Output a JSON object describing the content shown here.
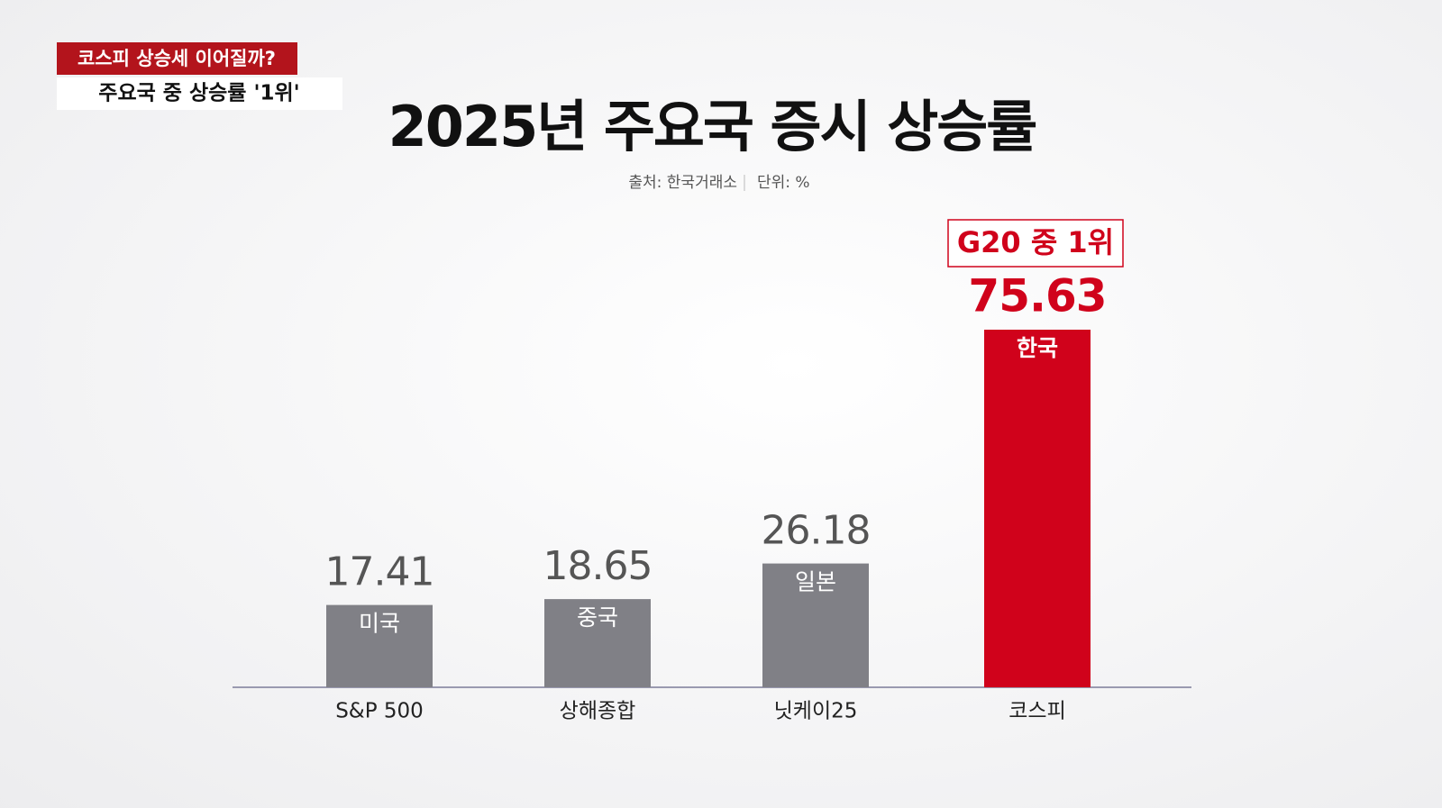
{
  "headline": [
    "코스피 상승세 이어질까?",
    "주요국 중 상승률 '1위'"
  ],
  "chart_data": {
    "type": "bar",
    "title": "2025년 주요국 증시 상승률",
    "source": "출처: 한국거래소",
    "unit": "단위: %",
    "categories": [
      "S&P 500",
      "상해종합",
      "닛케이25",
      "코스피"
    ],
    "values": [
      17.41,
      18.65,
      26.18,
      75.63
    ],
    "bar_labels": [
      "미국",
      "중국",
      "일본",
      "한국"
    ],
    "colors": [
      "#808086",
      "#808086",
      "#808086",
      "#d0021b"
    ],
    "annotation": "G20 중 1위"
  }
}
